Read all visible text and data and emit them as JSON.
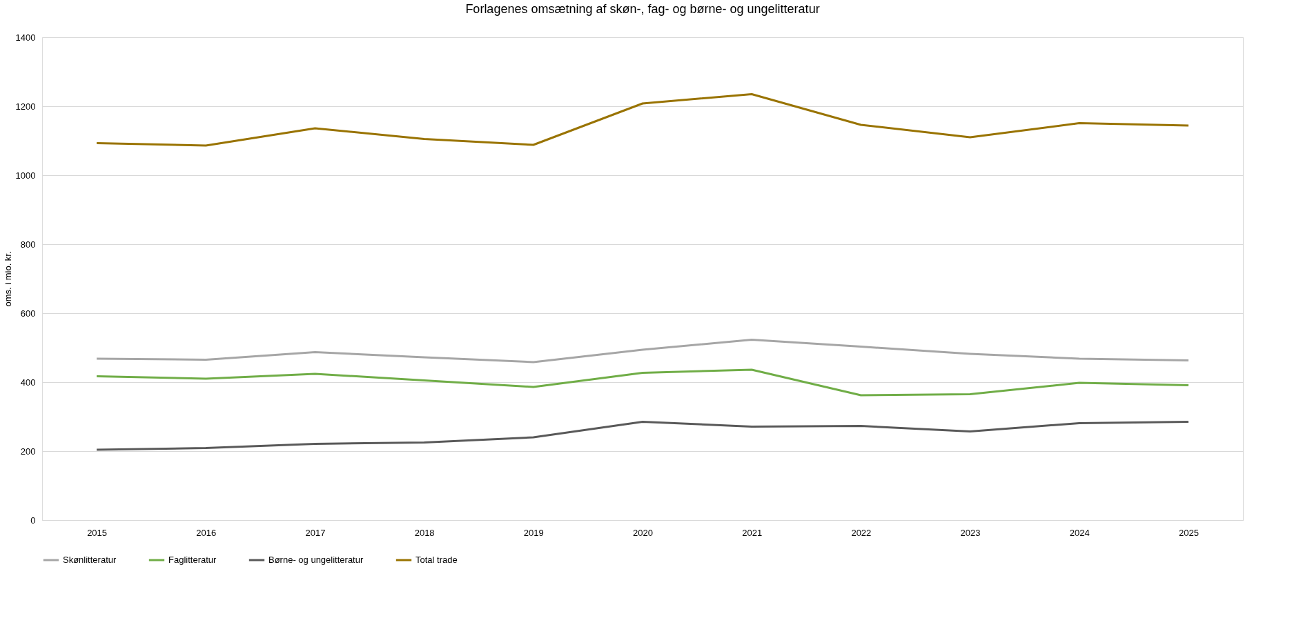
{
  "chart_data": {
    "type": "line",
    "title": "Forlagenes omsætning af skøn-, fag- og børne- og ungelitteratur",
    "ylabel": "oms. i mio. kr.",
    "categories": [
      "2015",
      "2016",
      "2017",
      "2018",
      "2019",
      "2020",
      "2021",
      "2022",
      "2023",
      "2024",
      "2025"
    ],
    "series": [
      {
        "name": "Skønlitteratur",
        "color": "#a6a6a6",
        "values": [
          468,
          465,
          487,
          472,
          458,
          494,
          523,
          503,
          482,
          468,
          463
        ]
      },
      {
        "name": "Faglitteratur",
        "color": "#70ad47",
        "values": [
          417,
          410,
          424,
          405,
          386,
          427,
          436,
          362,
          365,
          398,
          391
        ]
      },
      {
        "name": "Børne- og ungelitteratur",
        "color": "#595959",
        "values": [
          204,
          209,
          221,
          225,
          240,
          285,
          271,
          273,
          257,
          281,
          285
        ]
      },
      {
        "name": "Total trade",
        "color": "#997300",
        "values": [
          1093,
          1086,
          1136,
          1105,
          1088,
          1208,
          1235,
          1146,
          1110,
          1151,
          1144
        ]
      }
    ],
    "ylim": [
      0,
      1400
    ],
    "yticks": [
      0,
      200,
      400,
      600,
      800,
      1000,
      1200,
      1400
    ],
    "grid": "y",
    "legend": "bottom",
    "marker": "none",
    "line_style": "solid"
  }
}
